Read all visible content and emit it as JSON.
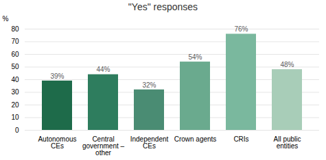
{
  "chart_data": {
    "type": "bar",
    "title": "\"Yes\" responses",
    "ylabel": "%",
    "categories": [
      "Autonomous\nCEs",
      "Central\ngovernment –\nother",
      "Independent\nCEs",
      "Crown agents",
      "CRIs",
      "All public\nentities"
    ],
    "values": [
      39,
      44,
      32,
      54,
      76,
      48
    ],
    "value_labels": [
      "39%",
      "44%",
      "32%",
      "54%",
      "76%",
      "48%"
    ],
    "colors": [
      "#1e6b4a",
      "#2e7d5e",
      "#4a8c73",
      "#6aaa8e",
      "#7ab89e",
      "#a8cdb8"
    ],
    "ylim": [
      0,
      80
    ],
    "yticks": [
      0,
      10,
      20,
      30,
      40,
      50,
      60,
      70,
      80
    ],
    "grid": true,
    "data_labels": true
  }
}
